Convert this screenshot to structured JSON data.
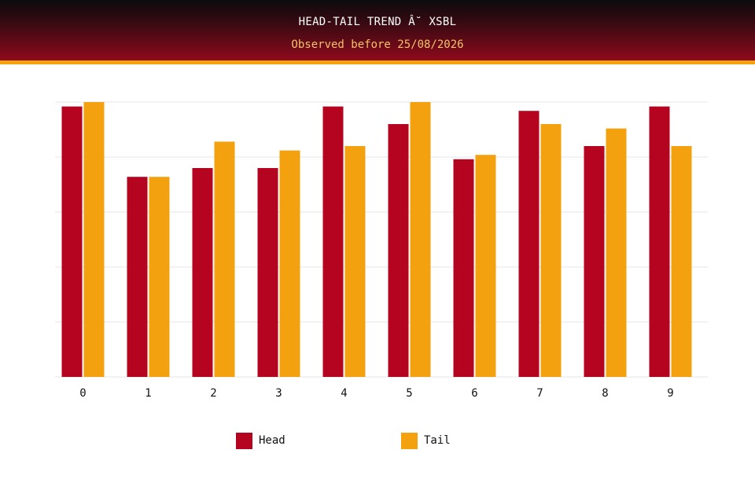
{
  "header": {
    "title": "HEAD-TAIL TREND Â˘ XSBL",
    "subtitle": "Observed before 25/08/2026"
  },
  "colors": {
    "head": "#b5041f",
    "tail": "#f4a10f",
    "grid": "#e6e6e6",
    "header_accent": "#f4a10f"
  },
  "legend": {
    "items": [
      {
        "label": "Head",
        "color": "#b5041f"
      },
      {
        "label": "Tail",
        "color": "#f4a10f"
      }
    ]
  },
  "chart_data": {
    "type": "bar",
    "title": "HEAD-TAIL TREND Â˘ XSBL",
    "subtitle": "Observed before 25/08/2026",
    "xlabel": "",
    "ylabel": "",
    "categories": [
      "0",
      "1",
      "2",
      "3",
      "4",
      "5",
      "6",
      "7",
      "8",
      "9"
    ],
    "ylim": [
      0,
      62.5
    ],
    "grid": true,
    "legend_position": "bottom",
    "series": [
      {
        "name": "Head",
        "color": "#b5041f",
        "values": [
          61.5,
          45.5,
          47.5,
          47.5,
          61.5,
          57.5,
          49.5,
          60.5,
          52.5,
          61.5
        ]
      },
      {
        "name": "Tail",
        "color": "#f4a10f",
        "values": [
          62.5,
          45.5,
          53.5,
          51.5,
          52.5,
          62.5,
          50.5,
          57.5,
          56.5,
          52.5
        ]
      }
    ]
  }
}
